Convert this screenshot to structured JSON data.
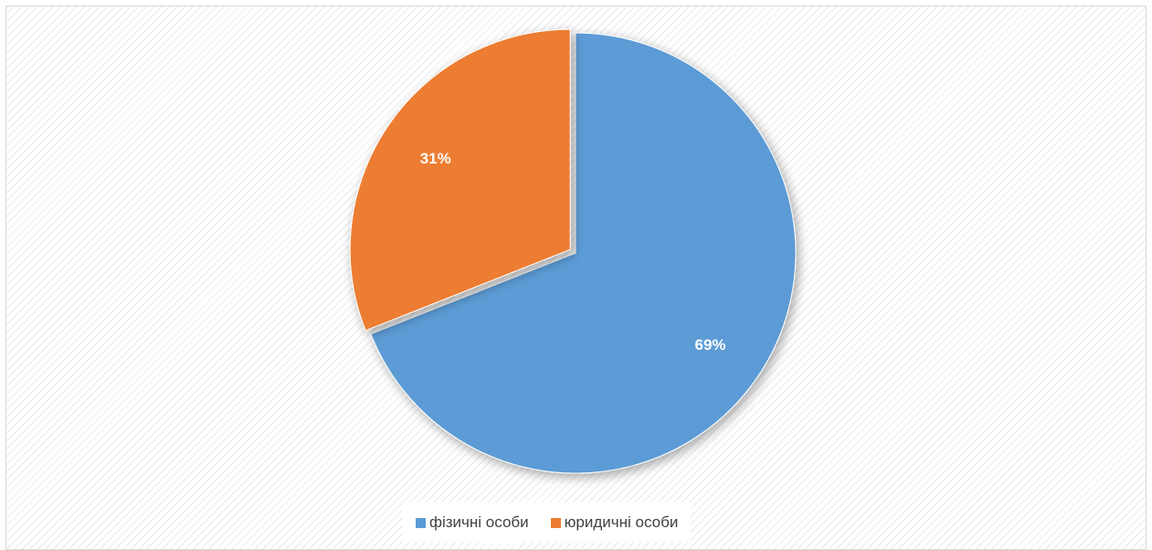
{
  "chart_data": {
    "type": "pie",
    "categories": [
      "фізичні особи",
      "юридичні особи"
    ],
    "values": [
      69,
      31
    ],
    "data_labels": [
      "69%",
      "31%"
    ],
    "colors": [
      "#5b9bd5",
      "#ed7d31"
    ],
    "exploded_slice": "юридичні особи",
    "legend_position": "bottom",
    "title": ""
  },
  "legend": {
    "items": [
      {
        "label": "фізичні особи",
        "color": "#5b9bd5"
      },
      {
        "label": "юридичні особи",
        "color": "#ed7d31"
      }
    ]
  }
}
